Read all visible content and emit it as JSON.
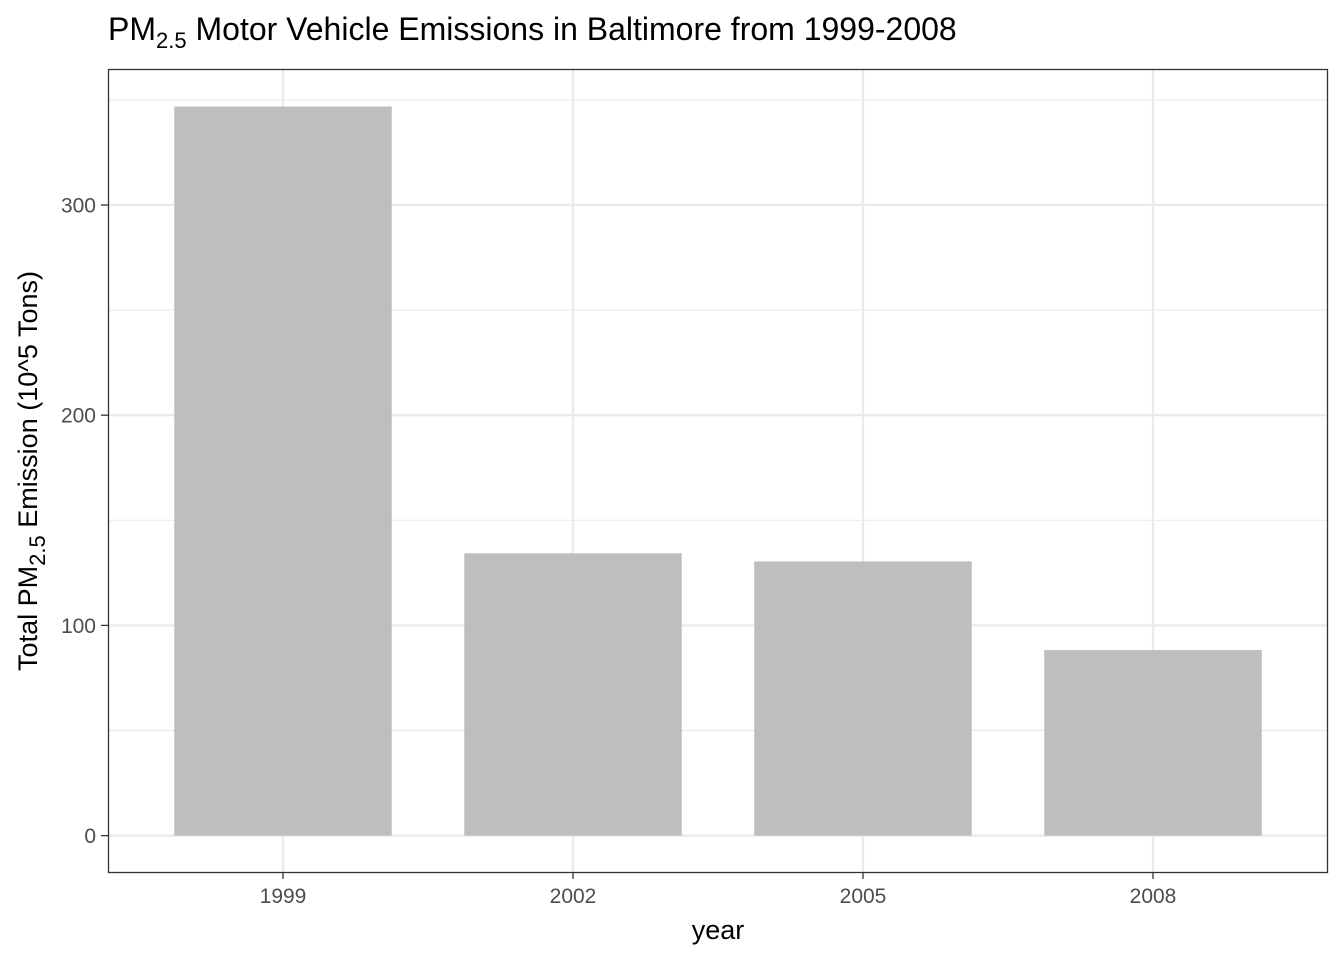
{
  "chart_data": {
    "type": "bar",
    "title": {
      "prefix": "PM",
      "subscript": "2.5",
      "suffix": " Motor Vehicle Emissions in Baltimore from 1999-2008"
    },
    "xlabel": "year",
    "ylabel": {
      "prefix": "Total PM",
      "subscript": "2.5",
      "suffix": " Emission (10^5 Tons)"
    },
    "categories": [
      "1999",
      "2002",
      "2005",
      "2008"
    ],
    "values": [
      346.82,
      134.31,
      130.43,
      88.28
    ],
    "ylim": [
      -17.3,
      364.2
    ],
    "yticks": [
      0,
      100,
      200,
      300
    ],
    "ytick_labels": [
      "0",
      "100",
      "200",
      "300"
    ],
    "bar_color": "#bebebe",
    "grid": true,
    "legend": "none"
  }
}
